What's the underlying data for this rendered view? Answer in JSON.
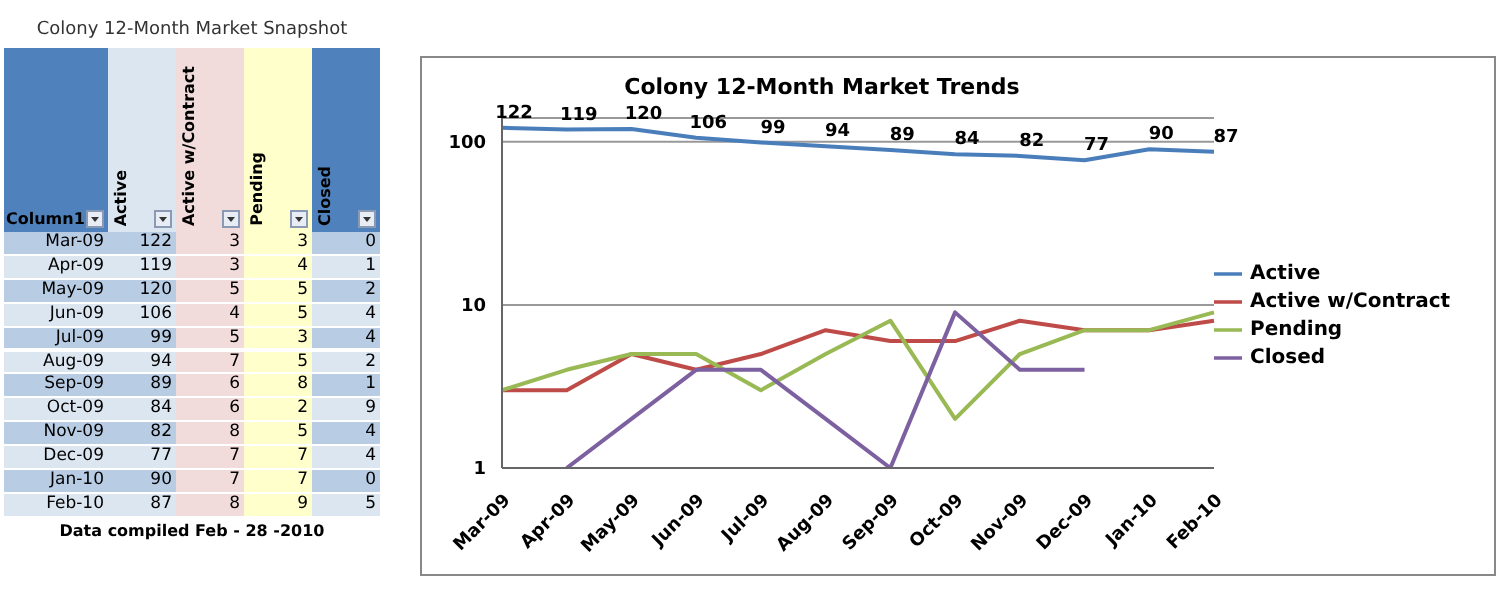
{
  "chart_data": [
    {
      "type": "other",
      "title": "Colony 12-Month Market Snapshot",
      "categories": [
        "Mar-09",
        "Apr-09",
        "May-09",
        "Jun-09",
        "Jul-09",
        "Aug-09",
        "Sep-09",
        "Oct-09",
        "Nov-09",
        "Dec-09",
        "Jan-10",
        "Feb-10"
      ],
      "series": [
        {
          "name": "Active",
          "colors": [
            "#b8cce4",
            "#dce6f1",
            "#b8cce4",
            "#dce6f1",
            "#b8cce4",
            "#dce6f1",
            "#b8cce4",
            "#dce6f1",
            "#b8cce4",
            "#dce6f1",
            "#b8cce4",
            "#dce6f1"
          ],
          "values": [
            122,
            119,
            120,
            106,
            99,
            94,
            89,
            84,
            82,
            77,
            90,
            87
          ]
        },
        {
          "name": "Active w/Contract",
          "color": "#f2dcdb",
          "values": [
            3,
            3,
            5,
            4,
            5,
            7,
            6,
            6,
            8,
            7,
            7,
            8
          ]
        },
        {
          "name": "Pending",
          "color": "#ffffcc",
          "values": [
            3,
            4,
            5,
            5,
            3,
            5,
            8,
            2,
            5,
            7,
            7,
            9
          ]
        },
        {
          "name": "Closed",
          "colors": [
            "#b8cce4",
            "#dce6f1",
            "#b8cce4",
            "#dce6f1",
            "#b8cce4",
            "#dce6f1",
            "#b8cce4",
            "#dce6f1",
            "#b8cce4",
            "#dce6f1",
            "#b8cce4",
            "#dce6f1"
          ],
          "values": [
            0,
            1,
            2,
            4,
            4,
            2,
            1,
            9,
            4,
            4,
            0,
            5
          ]
        }
      ],
      "data_labels": true,
      "annotations": [
        "Column1",
        "Data compiled Feb - 28 -2010"
      ]
    },
    {
      "type": "line",
      "title": "Colony 12-Month Market Trends",
      "categories": [
        "Mar-09",
        "Apr-09",
        "May-09",
        "Jun-09",
        "Jul-09",
        "Aug-09",
        "Sep-09",
        "Oct-09",
        "Nov-09",
        "Dec-09",
        "Jan-10",
        "Feb-10"
      ],
      "series": [
        {
          "name": "Active",
          "color": "#4a7ebb",
          "values": [
            122,
            119,
            120,
            106,
            99,
            94,
            89,
            84,
            82,
            77,
            90,
            87
          ],
          "value_labels": [
            "122",
            "119",
            "120",
            "106",
            "99",
            "94",
            "89",
            "84",
            "82",
            "77",
            "90",
            "87"
          ]
        },
        {
          "name": "Active w/Contract",
          "color": "#be4b48",
          "values": [
            3,
            3,
            5,
            4,
            5,
            7,
            6,
            6,
            8,
            7,
            7,
            8
          ]
        },
        {
          "name": "Pending",
          "color": "#98b954",
          "values": [
            3,
            4,
            5,
            5,
            3,
            5,
            8,
            2,
            5,
            7,
            7,
            9
          ]
        },
        {
          "name": "Closed",
          "color": "#7d60a0",
          "values": [
            null,
            1,
            2,
            4,
            4,
            2,
            1,
            9,
            4,
            4,
            null,
            null
          ]
        }
      ],
      "log": "y",
      "ylim": [
        1,
        140
      ],
      "yticks": [
        1,
        10,
        100
      ],
      "grid": "y",
      "legend": "right",
      "marker": "none",
      "line_style": "solid"
    }
  ]
}
